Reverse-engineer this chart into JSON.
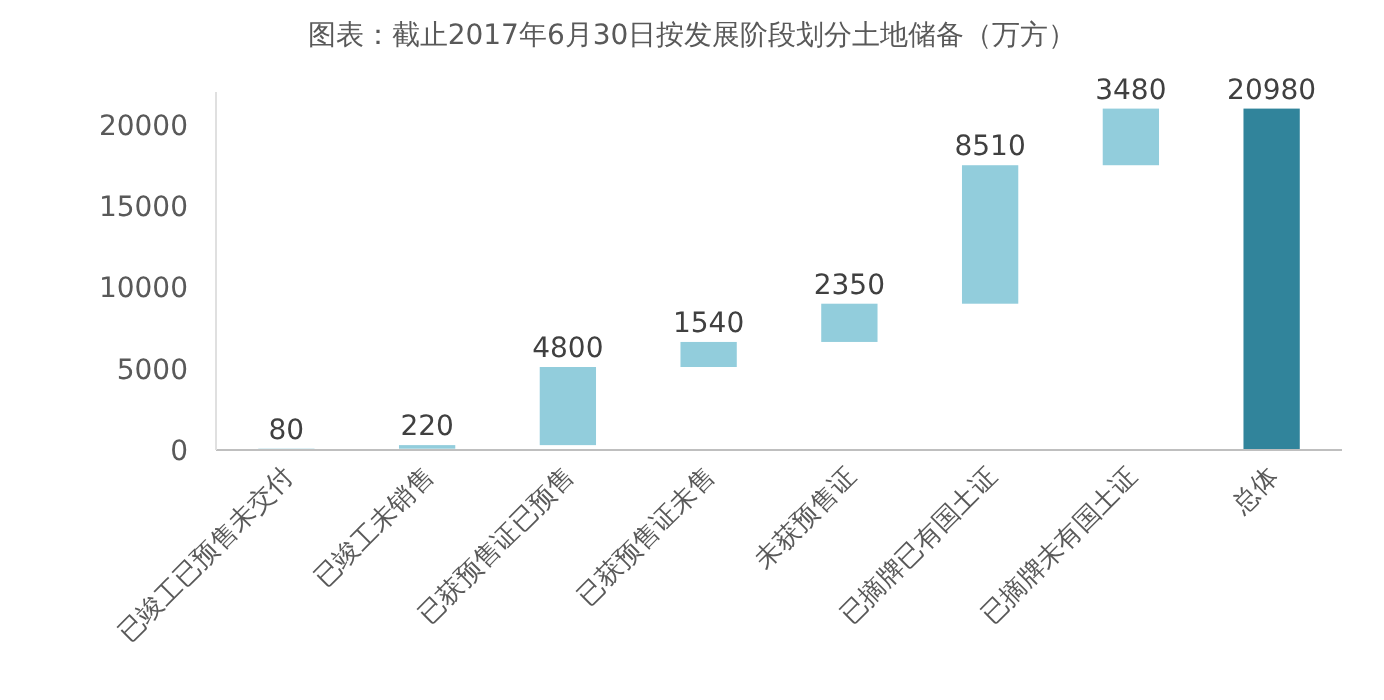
{
  "chart_data": {
    "type": "bar",
    "title": "图表：截止2017年6月30日按发展阶段划分土地储备（万方）",
    "categories": [
      "已竣工已预售未交付",
      "已竣工未销售",
      "已获预售证已预售",
      "已获预售证未售",
      "未获预售证",
      "已摘牌已有国土证",
      "已摘牌未有国土证",
      "总体"
    ],
    "values": [
      80,
      220,
      4800,
      1540,
      2350,
      8510,
      3480,
      20980
    ],
    "base": [
      0,
      80,
      300,
      5100,
      6640,
      8990,
      17500,
      0
    ],
    "colors": [
      "#92cddc",
      "#92cddc",
      "#92cddc",
      "#92cddc",
      "#92cddc",
      "#92cddc",
      "#92cddc",
      "#31849b"
    ],
    "ylim": [
      0,
      22000
    ],
    "yticks": [
      0,
      5000,
      10000,
      15000,
      20000
    ],
    "data_labels": true,
    "grid": false
  }
}
